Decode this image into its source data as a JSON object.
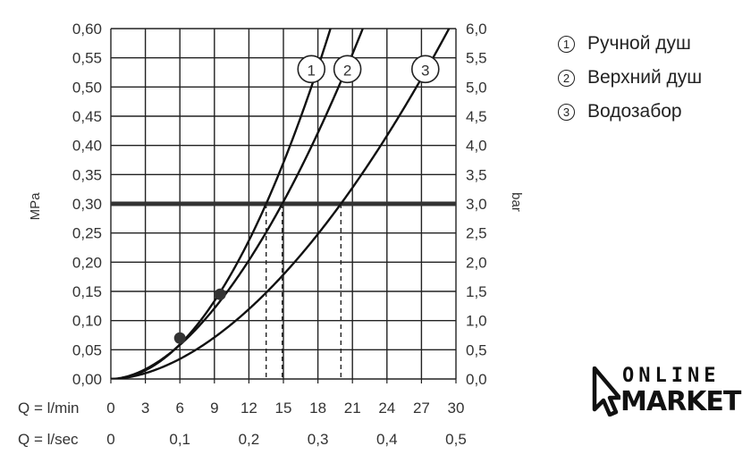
{
  "chart_data": {
    "type": "line",
    "y_left_label": "MPa",
    "y_right_label": "bar",
    "y_left_ticks": [
      "0,00",
      "0,05",
      "0,10",
      "0,15",
      "0,20",
      "0,25",
      "0,30",
      "0,35",
      "0,40",
      "0,45",
      "0,50",
      "0,55",
      "0,60"
    ],
    "y_right_ticks": [
      "0,0",
      "0,5",
      "1,0",
      "1,5",
      "2,0",
      "2,5",
      "3,0",
      "3,5",
      "4,0",
      "4,5",
      "5,0",
      "5,5",
      "6,0"
    ],
    "x_row1_label": "Q = l/min",
    "x_row1_ticks": [
      "0",
      "3",
      "6",
      "9",
      "12",
      "15",
      "18",
      "21",
      "24",
      "27",
      "30"
    ],
    "x_row2_label": "Q = l/sec",
    "x_row2_ticks": [
      "0",
      "0,1",
      "0,2",
      "0,3",
      "0,4",
      "0,5"
    ],
    "xlim": [
      0,
      30
    ],
    "ylim": [
      0,
      0.6
    ],
    "grid": true,
    "reference_line": {
      "y": 0.3
    },
    "series": [
      {
        "name": "1",
        "exponent": 2.0,
        "flow_at_ref": 13.5,
        "marker": {
          "x": 6.0,
          "y": 0.07
        }
      },
      {
        "name": "2",
        "exponent": 1.8,
        "flow_at_ref": 14.9,
        "marker": {
          "x": 9.5,
          "y": 0.145
        }
      },
      {
        "name": "3",
        "exponent": 1.8,
        "flow_at_ref": 20.0
      }
    ],
    "legend": [
      {
        "marker": "1",
        "label": "Ручной душ"
      },
      {
        "marker": "2",
        "label": "Верхний душ"
      },
      {
        "marker": "3",
        "label": "Водозабор"
      }
    ]
  },
  "logo": {
    "line1": "ONLINE",
    "line2": "MARKET"
  }
}
